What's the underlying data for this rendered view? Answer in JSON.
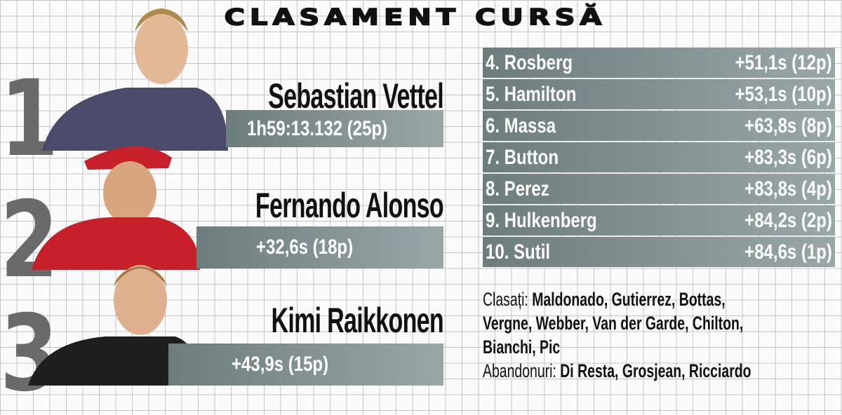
{
  "title": "CLASAMENT CURSĂ",
  "podium": [
    {
      "rank": "1",
      "name": "Sebastian Vettel",
      "result": "1h59:13.132 (25p)",
      "suit_color": "#4a4a6a"
    },
    {
      "rank": "2",
      "name": "Fernando Alonso",
      "result": "+32,6s (18p)",
      "suit_color": "#c8202a"
    },
    {
      "rank": "3",
      "name": "Kimi Raikkonen",
      "result": "+43,9s (15p)",
      "suit_color": "#1e1e1e"
    }
  ],
  "standings": [
    {
      "driver": "4. Rosberg",
      "result": "+51,1s (12p)"
    },
    {
      "driver": "5. Hamilton",
      "result": "+53,1s (10p)"
    },
    {
      "driver": "6. Massa",
      "result": "+63,8s (8p)"
    },
    {
      "driver": "7. Button",
      "result": "+83,3s (6p)"
    },
    {
      "driver": "8. Perez",
      "result": "+83,8s (4p)"
    },
    {
      "driver": "9. Hulkenberg",
      "result": "+84,2s (2p)"
    },
    {
      "driver": "10. Sutil",
      "result": "+84,6s (1p)"
    }
  ],
  "notes": {
    "classified_label": "Clasați:",
    "classified_line1": "Maldonado, Gutierrez, Bottas,",
    "classified_line2": "Vergne, Webber, Van der Garde, Chilton,",
    "classified_line3": "Bianchi, Pic",
    "retired_label": "Abandonuri:",
    "retired": "Di Resta, Grosjean, Ricciardo"
  }
}
